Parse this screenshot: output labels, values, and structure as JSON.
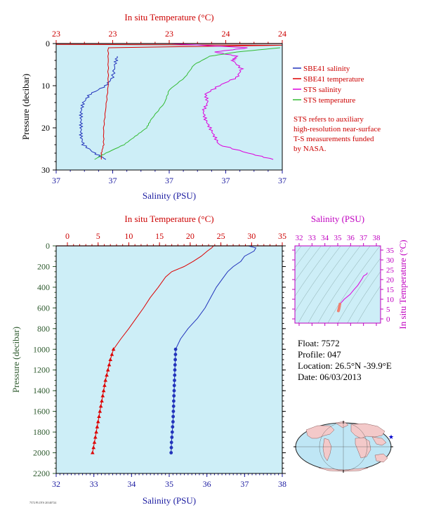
{
  "top_chart": {
    "top_axis_title": "In situ Temperature (°C)",
    "top_tick_labels": [
      "23",
      "23",
      "23",
      "24",
      "24"
    ],
    "bottom_axis_title": "Salinity (PSU)",
    "bottom_tick_labels": [
      "37",
      "37",
      "37",
      "37",
      "37"
    ],
    "left_axis_title": "Pressure (decibar)",
    "left_tick_labels": [
      "0",
      "10",
      "20",
      "30"
    ],
    "legend": [
      {
        "label": "SBE41 salinity",
        "color": "#2233bb"
      },
      {
        "label": "SBE41 temperature",
        "color": "#dd0000"
      },
      {
        "label": "STS salinity",
        "color": "#dd00dd"
      },
      {
        "label": "STS temperature",
        "color": "#33bb33"
      }
    ],
    "note": [
      "STS refers to auxiliary",
      "high-resolution near-surface",
      "T-S measurements funded",
      "by NASA."
    ]
  },
  "bottom_chart": {
    "top_axis_title": "In situ Temperature (°C)",
    "top_tick_labels": [
      "0",
      "5",
      "10",
      "15",
      "20",
      "25",
      "30",
      "35"
    ],
    "bottom_axis_title": "Salinity (PSU)",
    "bottom_tick_labels": [
      "32",
      "33",
      "34",
      "35",
      "36",
      "37",
      "38"
    ],
    "left_axis_title": "Pressure (decibar)",
    "left_tick_labels": [
      "0",
      "200",
      "400",
      "600",
      "800",
      "1000",
      "1200",
      "1400",
      "1600",
      "1800",
      "2000",
      "2200"
    ]
  },
  "ts_diagram": {
    "top_axis_title": "Salinity (PSU)",
    "top_tick_labels": [
      "32",
      "33",
      "34",
      "35",
      "36",
      "37",
      "38"
    ],
    "right_axis_title": "In situ Temperature (°C)",
    "right_tick_labels": [
      "0",
      "5",
      "10",
      "15",
      "20",
      "25",
      "30",
      "35"
    ]
  },
  "float_info": {
    "float": "Float:  7572",
    "profile": "Profile:  047",
    "location": "Location:  26.5°N  -39.9°E",
    "date": "Date:  06/03/2013"
  },
  "footer_tiny": "7572 PLOTS 20140724",
  "colors": {
    "panel_bg": "#cdeef7",
    "salinity": "#2233bb",
    "temperature": "#dd0000",
    "sts_salinity": "#dd00dd",
    "sts_temperature": "#33bb33",
    "axis_red": "#cc0000",
    "axis_blue": "#1a1aa0",
    "axis_green": "#2e5a2e",
    "axis_magenta": "#c000c0"
  },
  "chart_data": [
    {
      "type": "line",
      "title": "",
      "y_axis": "pressure_decibar",
      "ylim": [
        30,
        0
      ],
      "temperature_xlim": [
        23,
        24
      ],
      "salinity_xlim": [
        37,
        37
      ],
      "series": [
        {
          "name": "SBE41 salinity",
          "pressure": [
            3,
            5,
            8,
            10,
            12,
            14,
            16,
            18,
            20,
            22,
            24,
            26,
            27.5
          ],
          "value_fraction_of_axis": [
            0.27,
            0.26,
            0.25,
            0.22,
            0.15,
            0.12,
            0.11,
            0.11,
            0.11,
            0.11,
            0.12,
            0.17,
            0.22
          ]
        },
        {
          "name": "SBE41 temperature",
          "pressure": [
            0.2,
            0.4,
            1,
            5,
            10,
            15,
            20,
            24,
            26,
            27.5
          ],
          "value_fraction_of_axis": [
            0.0,
            1.0,
            0.23,
            0.23,
            0.23,
            0.22,
            0.21,
            0.21,
            0.2,
            0.2
          ]
        },
        {
          "name": "STS salinity",
          "pressure": [
            0,
            1,
            2,
            3,
            4,
            6,
            8,
            10,
            12,
            14,
            16,
            18,
            20,
            22,
            24,
            26,
            27.5
          ],
          "value_fraction_of_axis": [
            0.5,
            0.85,
            0.7,
            0.8,
            0.78,
            0.82,
            0.8,
            0.72,
            0.66,
            0.67,
            0.65,
            0.66,
            0.68,
            0.7,
            0.72,
            0.85,
            0.96
          ]
        },
        {
          "name": "STS temperature",
          "pressure": [
            1,
            2,
            3,
            5,
            8,
            11,
            14,
            18,
            20,
            22,
            24,
            26,
            27.5
          ],
          "value_fraction_of_axis": [
            0.99,
            0.8,
            0.68,
            0.61,
            0.57,
            0.5,
            0.48,
            0.42,
            0.4,
            0.35,
            0.3,
            0.22,
            0.17
          ]
        }
      ]
    },
    {
      "type": "line",
      "title": "",
      "y_axis": "pressure_decibar",
      "ylim": [
        2200,
        0
      ],
      "temperature_xlim": [
        0,
        35
      ],
      "salinity_xlim": [
        32,
        38
      ],
      "series": [
        {
          "name": "Salinity (PSU)",
          "pressure": [
            0,
            20,
            50,
            100,
            150,
            200,
            250,
            300,
            400,
            500,
            600,
            700,
            800,
            900,
            1000,
            1100,
            1200,
            1300,
            1400,
            1500,
            1600,
            1700,
            1800,
            1900,
            2000
          ],
          "values": [
            37.1,
            37.3,
            37.25,
            37.0,
            36.9,
            36.7,
            36.55,
            36.45,
            36.25,
            36.1,
            35.95,
            35.75,
            35.5,
            35.3,
            35.17,
            35.16,
            35.15,
            35.14,
            35.13,
            35.12,
            35.11,
            35.1,
            35.08,
            35.06,
            35.05
          ]
        },
        {
          "name": "In situ Temperature (°C)",
          "pressure": [
            0,
            20,
            50,
            100,
            150,
            200,
            250,
            300,
            400,
            500,
            600,
            700,
            800,
            900,
            1000,
            1100,
            1200,
            1300,
            1400,
            1500,
            1600,
            1700,
            1800,
            1900,
            2000
          ],
          "values": [
            23.8,
            23.5,
            22.8,
            21.8,
            20.5,
            19.0,
            17.0,
            16.0,
            14.8,
            13.5,
            12.4,
            11.2,
            10.0,
            8.7,
            7.5,
            7.0,
            6.6,
            6.2,
            5.9,
            5.6,
            5.3,
            5.0,
            4.7,
            4.4,
            4.1
          ]
        }
      ]
    },
    {
      "type": "scatter",
      "title": "",
      "xlabel": "Salinity (PSU)",
      "ylabel": "In situ Temperature (°C)",
      "xlim": [
        32,
        38
      ],
      "ylim": [
        0,
        35
      ],
      "points": [
        [
          35.05,
          4.1
        ],
        [
          35.08,
          4.7
        ],
        [
          35.1,
          5.3
        ],
        [
          35.12,
          5.9
        ],
        [
          35.14,
          6.6
        ],
        [
          35.17,
          7.5
        ],
        [
          35.5,
          10.0
        ],
        [
          35.95,
          12.4
        ],
        [
          36.25,
          14.8
        ],
        [
          36.55,
          17.0
        ],
        [
          36.9,
          20.5
        ],
        [
          37.0,
          21.8
        ],
        [
          37.25,
          22.8
        ],
        [
          37.3,
          23.5
        ]
      ]
    }
  ]
}
